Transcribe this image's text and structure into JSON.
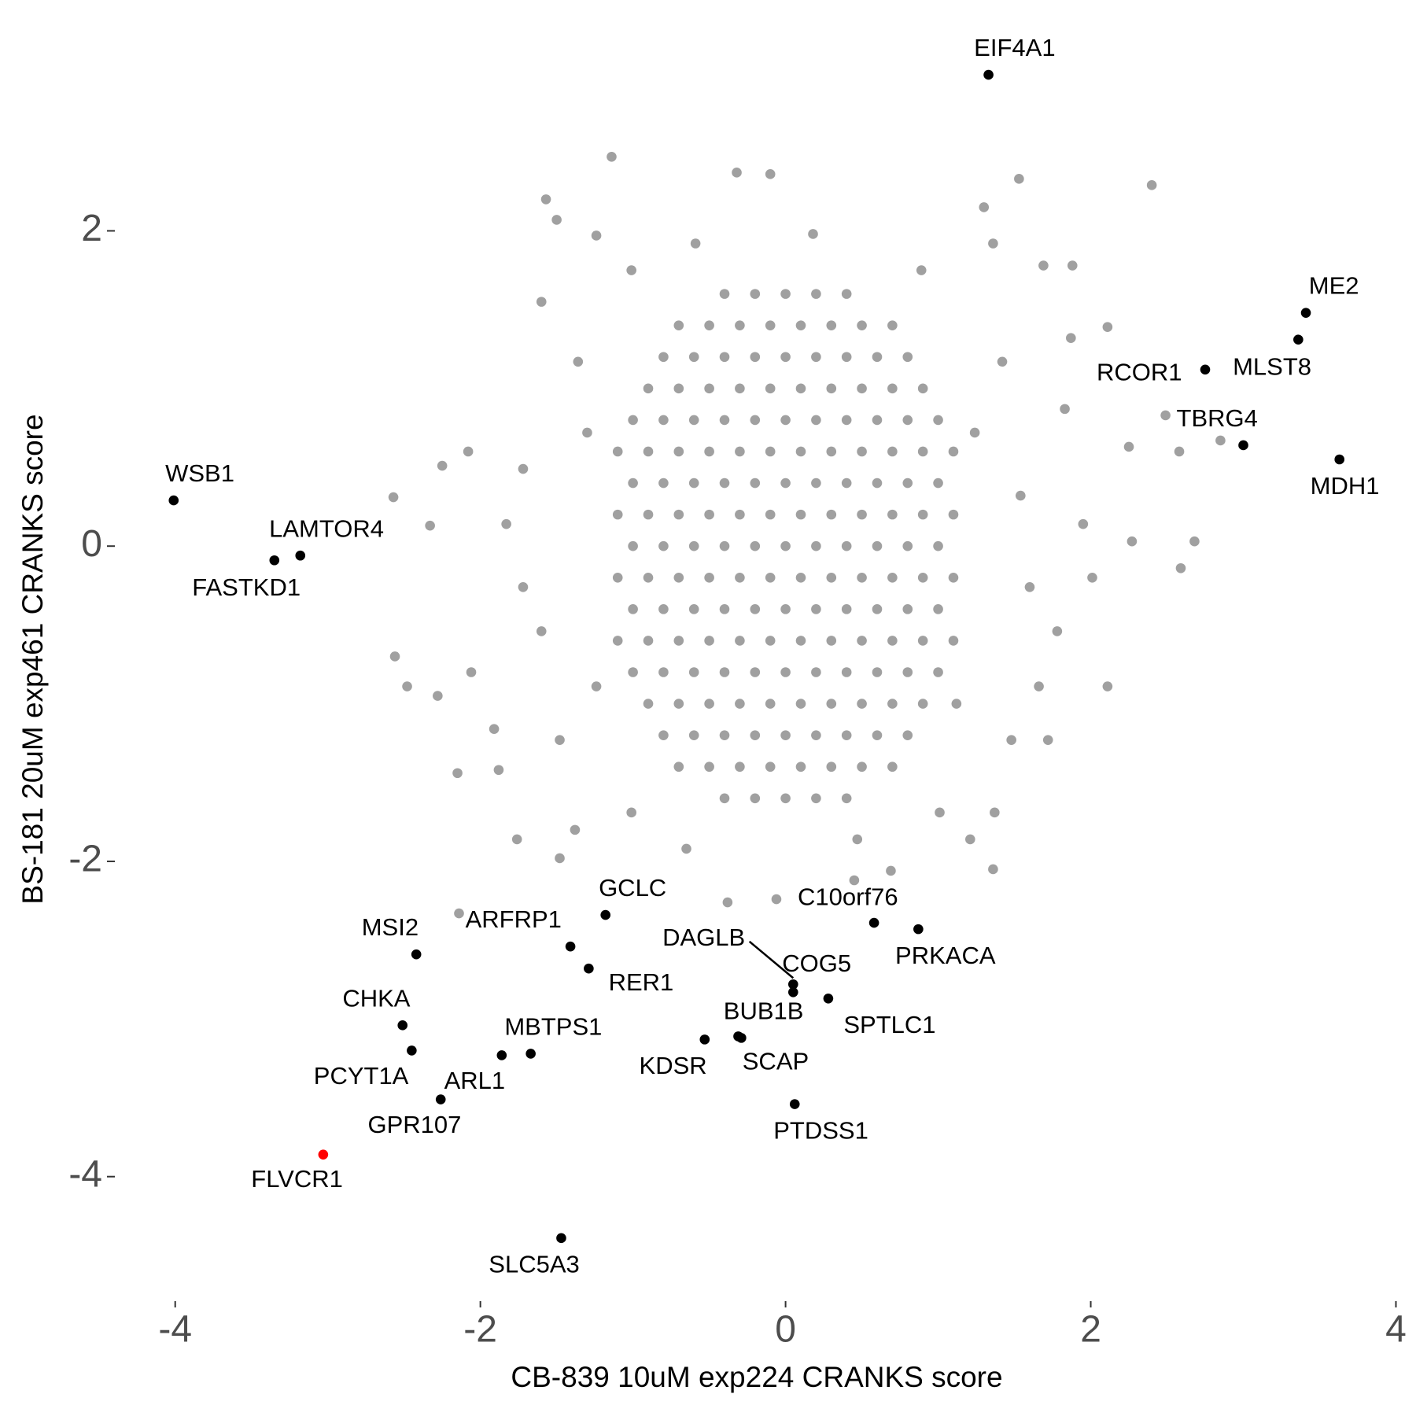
{
  "chart_data": {
    "type": "scatter",
    "x_label": "CB-839 10uM exp224 CRANKS score",
    "y_label": "BS-181 20uM exp461 CRANKS score",
    "xlim": [
      -4.38,
      4.08
    ],
    "ylim": [
      -4.79,
      3.24
    ],
    "xticks": [
      -4,
      -2,
      0,
      2,
      4
    ],
    "yticks": [
      -4,
      -2,
      0,
      2
    ],
    "grid": false,
    "series": [
      {
        "color": "#a0a0a0",
        "x": [
          -0.4,
          -0.2,
          0,
          0.2,
          0.4,
          -0.7,
          -0.5,
          -0.3,
          -0.1,
          0.1,
          0.3,
          0.5,
          0.7,
          -0.8,
          -0.6,
          -0.4,
          -0.2,
          0,
          0.2,
          0.4,
          0.6,
          0.8,
          -0.9,
          -0.7,
          -0.5,
          -0.3,
          -0.1,
          0.1,
          0.3,
          0.5,
          0.7,
          0.9,
          -1,
          -0.8,
          -0.6,
          -0.4,
          -0.2,
          0,
          0.2,
          0.4,
          0.6,
          0.8,
          1,
          -1.1,
          -0.9,
          -0.7,
          -0.5,
          -0.3,
          -0.1,
          0.1,
          0.3,
          0.5,
          0.7,
          0.9,
          1.1,
          -1,
          -0.8,
          -0.6,
          -0.4,
          -0.2,
          0,
          0.2,
          0.4,
          0.6,
          0.8,
          1,
          -1.1,
          -0.9,
          -0.7,
          -0.5,
          -0.3,
          -0.1,
          0.1,
          0.3,
          0.5,
          0.7,
          0.9,
          1.1,
          -1,
          -0.8,
          -0.6,
          -0.4,
          -0.2,
          0,
          0.2,
          0.4,
          0.6,
          0.8,
          1,
          -1.1,
          -0.9,
          -0.7,
          -0.5,
          -0.3,
          -0.1,
          0.1,
          0.3,
          0.5,
          0.7,
          0.9,
          1.1,
          -1,
          -0.8,
          -0.6,
          -0.4,
          -0.2,
          0,
          0.2,
          0.4,
          0.6,
          0.8,
          1,
          -1.1,
          -0.9,
          -0.7,
          -0.5,
          -0.3,
          -0.1,
          0.1,
          0.3,
          0.5,
          0.7,
          0.9,
          1.1,
          -1,
          -0.8,
          -0.6,
          -0.4,
          -0.2,
          0,
          0.2,
          0.4,
          0.6,
          0.8,
          1,
          -0.9,
          -0.7,
          -0.5,
          -0.3,
          -0.1,
          0.1,
          0.3,
          0.5,
          0.7,
          0.9,
          -0.8,
          -0.6,
          -0.4,
          -0.2,
          0,
          0.2,
          0.4,
          0.6,
          0.8,
          -0.7,
          -0.5,
          -0.3,
          -0.1,
          0.1,
          0.3,
          0.5,
          0.7,
          -0.4,
          -0.2,
          0,
          0.2,
          0.4,
          -1.14,
          -0.32,
          -0.1,
          2.4,
          1.53,
          -1.57,
          -1.5,
          -1.24,
          1.88,
          2.11,
          1.87,
          1.69,
          -1.6,
          2.25,
          2.58,
          2.49,
          2.85,
          2.27,
          2.68,
          2.59,
          2.11,
          -2.57,
          -2.56,
          -2.48,
          -2.28,
          -2.25,
          -2.33,
          -2.08,
          -2.15,
          -1.91,
          -1.88,
          -2.14,
          -1.76,
          -1.48,
          -1.38,
          -0.38,
          -0.06,
          0.45,
          0.69,
          1.36,
          1.21,
          1.37,
          1.72,
          2.01,
          1.95,
          -2.06,
          -1.83,
          -1.72,
          1.66,
          1.78,
          1.83,
          1.3,
          1.36,
          -1.01,
          -0.59,
          0.18,
          0.89,
          -1.01,
          -0.65,
          0.47,
          1.01,
          -1.36,
          1.42,
          -1.48,
          1.48,
          -1.72,
          -1.6,
          1.54,
          1.6,
          -1.3,
          -1.24,
          1.24,
          1.12
        ],
        "values": [
          1.6,
          1.6,
          1.6,
          1.6,
          1.6,
          1.4,
          1.4,
          1.4,
          1.4,
          1.4,
          1.4,
          1.4,
          1.4,
          1.2,
          1.2,
          1.2,
          1.2,
          1.2,
          1.2,
          1.2,
          1.2,
          1.2,
          1,
          1,
          1,
          1,
          1,
          1,
          1,
          1,
          1,
          1,
          0.8,
          0.8,
          0.8,
          0.8,
          0.8,
          0.8,
          0.8,
          0.8,
          0.8,
          0.8,
          0.8,
          0.6,
          0.6,
          0.6,
          0.6,
          0.6,
          0.6,
          0.6,
          0.6,
          0.6,
          0.6,
          0.6,
          0.6,
          0.4,
          0.4,
          0.4,
          0.4,
          0.4,
          0.4,
          0.4,
          0.4,
          0.4,
          0.4,
          0.4,
          0.2,
          0.2,
          0.2,
          0.2,
          0.2,
          0.2,
          0.2,
          0.2,
          0.2,
          0.2,
          0.2,
          0.2,
          0,
          0,
          0,
          0,
          0,
          0,
          0,
          0,
          0,
          0,
          0,
          -0.2,
          -0.2,
          -0.2,
          -0.2,
          -0.2,
          -0.2,
          -0.2,
          -0.2,
          -0.2,
          -0.2,
          -0.2,
          -0.2,
          -0.4,
          -0.4,
          -0.4,
          -0.4,
          -0.4,
          -0.4,
          -0.4,
          -0.4,
          -0.4,
          -0.4,
          -0.4,
          -0.6,
          -0.6,
          -0.6,
          -0.6,
          -0.6,
          -0.6,
          -0.6,
          -0.6,
          -0.6,
          -0.6,
          -0.6,
          -0.6,
          -0.8,
          -0.8,
          -0.8,
          -0.8,
          -0.8,
          -0.8,
          -0.8,
          -0.8,
          -0.8,
          -0.8,
          -0.8,
          -1,
          -1,
          -1,
          -1,
          -1,
          -1,
          -1,
          -1,
          -1,
          -1,
          -1.2,
          -1.2,
          -1.2,
          -1.2,
          -1.2,
          -1.2,
          -1.2,
          -1.2,
          -1.2,
          -1.4,
          -1.4,
          -1.4,
          -1.4,
          -1.4,
          -1.4,
          -1.4,
          -1.4,
          -1.6,
          -1.6,
          -1.6,
          -1.6,
          -1.6,
          2.47,
          2.37,
          2.36,
          2.29,
          2.33,
          2.2,
          2.07,
          1.97,
          1.78,
          1.39,
          1.32,
          1.78,
          1.55,
          0.63,
          0.6,
          0.83,
          0.67,
          0.03,
          0.03,
          -0.14,
          -0.89,
          0.31,
          -0.7,
          -0.89,
          -0.95,
          0.51,
          0.13,
          0.6,
          -1.44,
          -1.16,
          -1.42,
          -2.33,
          -1.86,
          -1.98,
          -1.8,
          -2.26,
          -2.24,
          -2.12,
          -2.06,
          -2.05,
          -1.86,
          -1.69,
          -1.23,
          -0.2,
          0.14,
          -0.8,
          0.14,
          0.49,
          -0.89,
          -0.54,
          0.87,
          2.15,
          1.92,
          1.75,
          1.92,
          1.98,
          1.75,
          -1.69,
          -1.92,
          -1.86,
          -1.69,
          1.17,
          1.17,
          -1.23,
          -1.23,
          -0.26,
          -0.54,
          0.32,
          -0.26,
          0.72,
          -0.89,
          0.72,
          -1.0
        ]
      },
      {
        "color": "#000000",
        "labels": [
          "EIF4A1",
          "ME2",
          "MLST8",
          "RCOR1",
          "TBRG4",
          "MDH1",
          "WSB1",
          "LAMTOR4",
          "FASTKD1",
          "GCLC",
          "ARFRP1",
          "RER1",
          "MSI2",
          "C10orf76",
          "PRKACA",
          "DAGLB",
          "COG5",
          "SPTLC1",
          "BUB1B",
          "KDSR",
          "SCAP",
          "CHKA",
          "PCYT1A",
          "MBTPS1",
          "ARL1",
          "GPR107",
          "PTDSS1",
          "SLC5A3"
        ],
        "x": [
          1.33,
          3.41,
          3.36,
          2.75,
          3.0,
          3.63,
          -4.01,
          -3.18,
          -3.35,
          -1.18,
          -1.41,
          -1.29,
          -2.42,
          0.58,
          0.87,
          0.05,
          0.05,
          0.28,
          -0.31,
          -0.53,
          -0.29,
          -2.51,
          -2.45,
          -1.67,
          -1.86,
          -2.26,
          0.06,
          -1.47
        ],
        "values": [
          2.99,
          1.48,
          1.31,
          1.12,
          0.64,
          0.55,
          0.29,
          -0.06,
          -0.09,
          -2.34,
          -2.54,
          -2.68,
          -2.59,
          -2.39,
          -2.43,
          -2.78,
          -2.83,
          -2.87,
          -3.11,
          -3.13,
          -3.12,
          -3.04,
          -3.2,
          -3.22,
          -3.23,
          -3.51,
          -3.54,
          -4.39
        ]
      },
      {
        "color": "#ff0000",
        "labels": [
          "FLVCR1"
        ],
        "x": [
          -3.03
        ],
        "values": [
          -3.86
        ]
      }
    ]
  }
}
